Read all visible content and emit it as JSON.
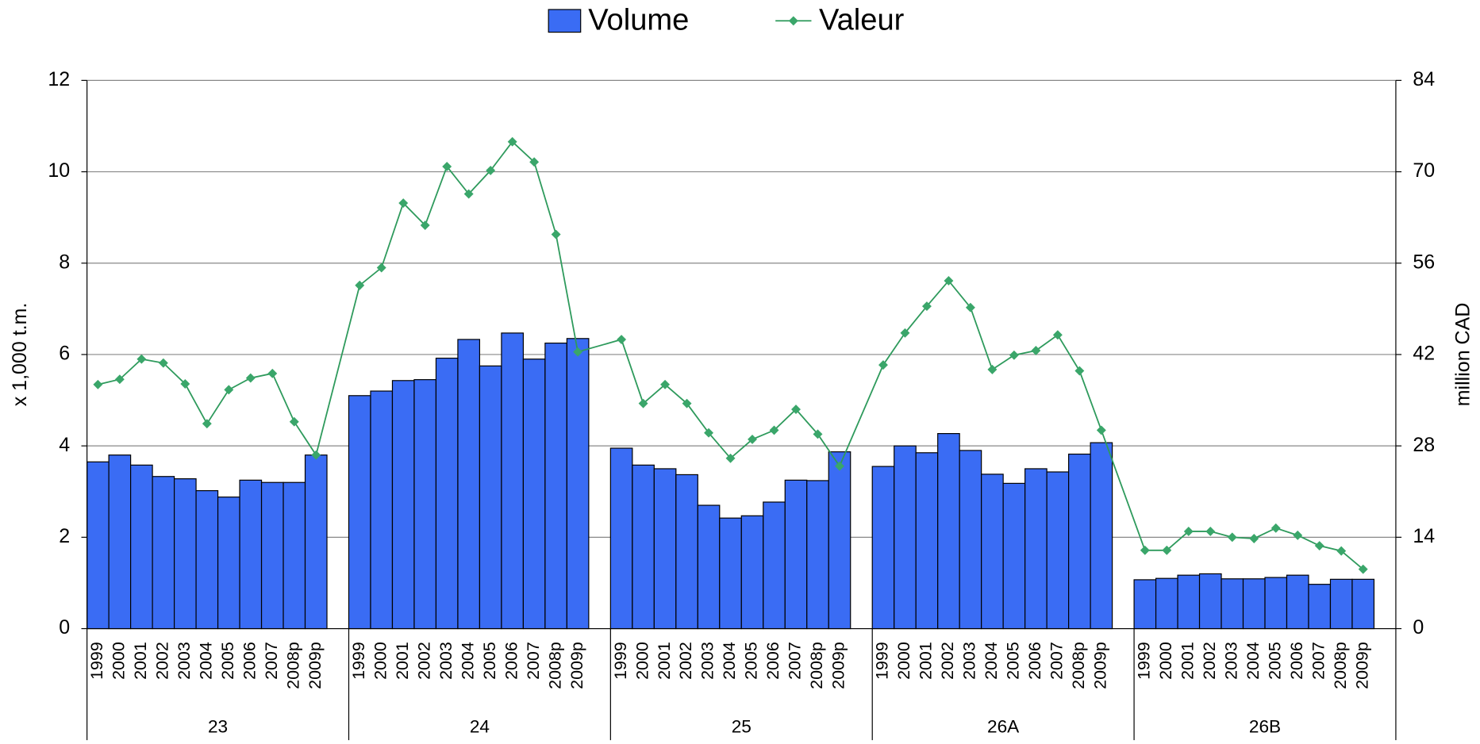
{
  "chart_data": {
    "type": "bar",
    "groups": [
      "23",
      "24",
      "25",
      "26A",
      "26B"
    ],
    "categories": [
      "1999",
      "2000",
      "2001",
      "2002",
      "2003",
      "2004",
      "2005",
      "2006",
      "2007",
      "2008p",
      "2009p",
      "1999",
      "2000",
      "2001",
      "2002",
      "2003",
      "2004",
      "2005",
      "2006",
      "2007",
      "2008p",
      "2009p",
      "1999",
      "2000",
      "2001",
      "2002",
      "2003",
      "2004",
      "2005",
      "2006",
      "2007",
      "2008p",
      "2009p",
      "1999",
      "2000",
      "2001",
      "2002",
      "2003",
      "2004",
      "2005",
      "2006",
      "2007",
      "2008p",
      "2009p",
      "1999",
      "2000",
      "2001",
      "2002",
      "2003",
      "2004",
      "2005",
      "2006",
      "2007",
      "2008p",
      "2009p"
    ],
    "series": [
      {
        "name": "Volume",
        "type": "bar",
        "color": "#3a6cf4",
        "values": [
          3.65,
          3.8,
          3.58,
          3.33,
          3.28,
          3.02,
          2.88,
          3.25,
          3.2,
          3.2,
          3.8,
          5.1,
          5.2,
          5.43,
          5.45,
          5.92,
          6.33,
          5.75,
          6.47,
          5.9,
          6.25,
          6.35,
          3.95,
          3.58,
          3.5,
          3.37,
          2.7,
          2.42,
          2.47,
          2.77,
          3.25,
          3.24,
          3.87,
          3.55,
          4.0,
          3.85,
          4.27,
          3.9,
          3.38,
          3.18,
          3.5,
          3.43,
          3.82,
          4.07,
          1.07,
          1.1,
          1.17,
          1.2,
          1.09,
          1.09,
          1.12,
          1.17,
          0.97,
          1.08,
          1.08
        ]
      },
      {
        "name": "Valeur",
        "type": "line",
        "axis": "y2",
        "color": "#2e9a5c",
        "values": [
          37.4,
          38.2,
          41.3,
          40.7,
          37.5,
          31.4,
          36.6,
          38.4,
          39.1,
          31.7,
          26.6,
          52.6,
          55.3,
          65.2,
          61.8,
          70.8,
          66.6,
          70.2,
          74.6,
          71.5,
          60.4,
          42.4,
          44.3,
          34.5,
          37.4,
          34.5,
          30.0,
          26.1,
          29.0,
          30.4,
          33.6,
          29.8,
          24.9,
          40.4,
          45.3,
          49.4,
          53.3,
          49.2,
          39.7,
          41.9,
          42.6,
          45.0,
          39.5,
          30.4,
          12.0,
          12.0,
          14.9,
          14.9,
          14.0,
          13.8,
          15.4,
          14.3,
          12.7,
          11.9,
          9.1
        ]
      }
    ],
    "ylabel": "x 1,000 t.m.",
    "y2label": "million CAD",
    "ylim": [
      0,
      12
    ],
    "yticks": [
      0,
      2,
      4,
      6,
      8,
      10,
      12
    ],
    "y2lim": [
      0,
      84
    ],
    "y2ticks": [
      0,
      14,
      28,
      42,
      56,
      70,
      84
    ],
    "grid": true,
    "legend": "top"
  }
}
